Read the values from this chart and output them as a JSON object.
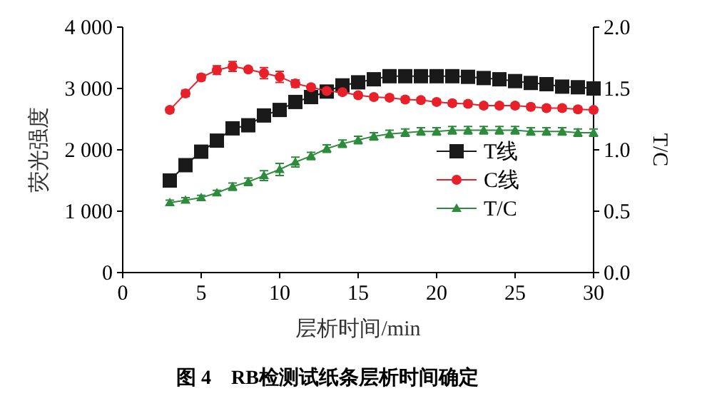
{
  "chart_data": {
    "type": "line",
    "title": "图 4　RB检测试纸条层析时间确定",
    "xlabel": "层析时间/min",
    "ylabel": "荧光强度",
    "y2label": "T/C",
    "x": [
      3,
      4,
      5,
      6,
      7,
      8,
      9,
      10,
      11,
      12,
      13,
      14,
      15,
      16,
      17,
      18,
      19,
      20,
      21,
      22,
      23,
      24,
      25,
      26,
      27,
      28,
      29,
      30
    ],
    "xlim": [
      0,
      30
    ],
    "xticks": [
      0,
      5,
      10,
      15,
      20,
      25,
      30
    ],
    "ylim": [
      0,
      4000
    ],
    "yticks": [
      0,
      {
        "value": 1000,
        "label": "1 000"
      },
      {
        "value": 2000,
        "label": "2 000"
      },
      {
        "value": 3000,
        "label": "3 000"
      },
      {
        "value": 4000,
        "label": "4 000"
      }
    ],
    "y2lim": [
      0,
      2
    ],
    "y2ticks": [
      {
        "value": 0,
        "label": "0.0"
      },
      {
        "value": 0.5,
        "label": "0.5"
      },
      {
        "value": 1,
        "label": "1.0"
      },
      {
        "value": 1.5,
        "label": "1.5"
      },
      {
        "value": 2,
        "label": "2.0"
      }
    ],
    "legend": "right",
    "grid": false,
    "line_style": "solid",
    "series": [
      {
        "name": "T线",
        "color": "#1a1a1a",
        "marker": "square",
        "values": [
          1500,
          1750,
          1970,
          2150,
          2350,
          2400,
          2560,
          2650,
          2780,
          2860,
          2950,
          3050,
          3100,
          3150,
          3200,
          3200,
          3200,
          3200,
          3200,
          3190,
          3170,
          3150,
          3120,
          3090,
          3070,
          3030,
          3020,
          3000
        ]
      },
      {
        "name": "C线",
        "color": "#e8202a",
        "marker": "circle",
        "values": [
          2650,
          2920,
          3180,
          3300,
          3360,
          3310,
          3250,
          3190,
          3080,
          3020,
          2960,
          2940,
          2890,
          2860,
          2850,
          2820,
          2810,
          2780,
          2760,
          2750,
          2720,
          2720,
          2720,
          2700,
          2680,
          2680,
          2660,
          2650
        ],
        "errors": [
          40,
          50,
          50,
          70,
          80,
          40,
          90,
          90,
          60,
          40,
          40,
          40,
          40,
          40,
          40,
          40,
          40,
          40,
          40,
          40,
          40,
          40,
          40,
          40,
          40,
          40,
          40,
          40
        ]
      },
      {
        "name": "T/C",
        "color": "#2e8b3e",
        "marker": "triangle",
        "axis": "y2",
        "values": [
          0.57,
          0.59,
          0.61,
          0.65,
          0.7,
          0.74,
          0.79,
          0.84,
          0.9,
          0.95,
          1.01,
          1.05,
          1.08,
          1.11,
          1.13,
          1.14,
          1.15,
          1.15,
          1.16,
          1.16,
          1.16,
          1.16,
          1.16,
          1.15,
          1.15,
          1.15,
          1.14,
          1.14
        ],
        "errors": [
          0.02,
          0.02,
          0.02,
          0.02,
          0.03,
          0.03,
          0.04,
          0.05,
          0.04,
          0.03,
          0.03,
          0.03,
          0.03,
          0.03,
          0.03,
          0.03,
          0.03,
          0.03,
          0.03,
          0.03,
          0.03,
          0.03,
          0.03,
          0.03,
          0.03,
          0.03,
          0.03,
          0.03
        ]
      }
    ]
  }
}
